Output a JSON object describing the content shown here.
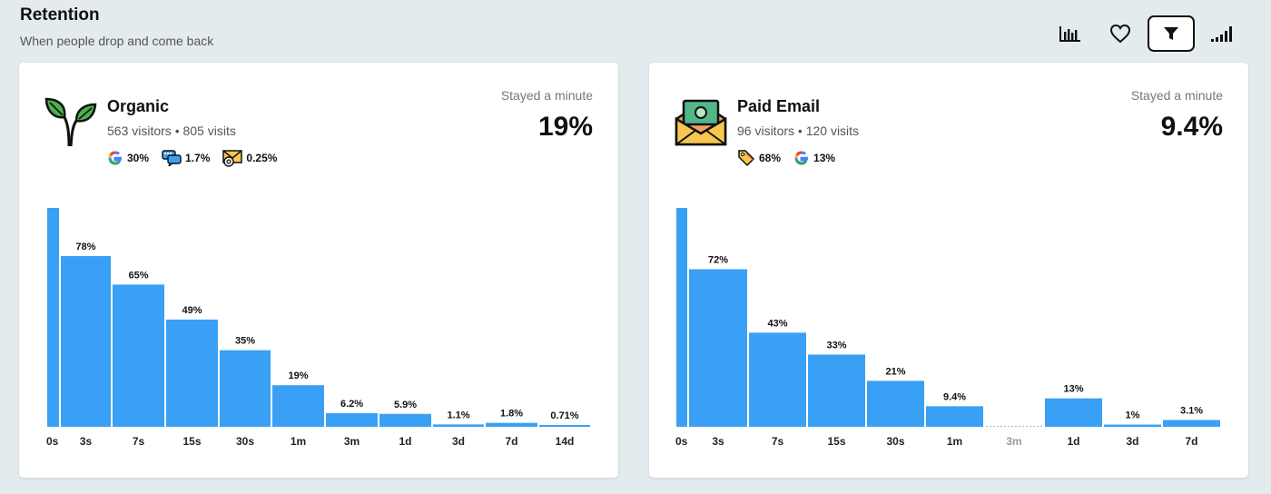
{
  "header": {
    "title": "Retention",
    "subtitle": "When people drop and come back"
  },
  "toolbar": [
    {
      "icon": "bar-chart-icon",
      "active": false
    },
    {
      "icon": "heart-icon",
      "active": false
    },
    {
      "icon": "filter-icon",
      "active": true
    },
    {
      "icon": "signal-bars-icon",
      "active": false
    }
  ],
  "colors": {
    "bar": "#3aa0f5",
    "gap_line": "#bbbbbb",
    "tick": "#222222",
    "tick_muted": "#999999"
  },
  "cards": [
    {
      "name": "Organic",
      "meta": "563 visitors • 805 visits",
      "icon": "sprout-icon",
      "metric_label": "Stayed a minute",
      "metric_value": "19%",
      "sources": [
        {
          "icon": "google-icon",
          "value": "30%"
        },
        {
          "icon": "chat-bubbles-icon",
          "value": "1.7%"
        },
        {
          "icon": "email-icon",
          "value": "0.25%"
        }
      ]
    },
    {
      "name": "Paid Email",
      "meta": "96 visitors • 120 visits",
      "icon": "money-envelope-icon",
      "metric_label": "Stayed a minute",
      "metric_value": "9.4%",
      "sources": [
        {
          "icon": "price-tag-icon",
          "value": "68%"
        },
        {
          "icon": "google-icon",
          "value": "13%"
        }
      ]
    }
  ],
  "chart_data": [
    {
      "type": "bar",
      "title": "Organic",
      "categories": [
        "0s",
        "3s",
        "7s",
        "15s",
        "30s",
        "1m",
        "3m",
        "1d",
        "3d",
        "7d",
        "14d"
      ],
      "values": [
        100,
        78,
        65,
        49,
        35,
        19,
        6.2,
        5.9,
        1.1,
        1.8,
        0.71
      ],
      "labels": [
        "",
        "78%",
        "65%",
        "49%",
        "35%",
        "19%",
        "6.2%",
        "5.9%",
        "1.1%",
        "1.8%",
        "0.71%"
      ],
      "ylim": [
        0,
        100
      ]
    },
    {
      "type": "bar",
      "title": "Paid Email",
      "categories": [
        "0s",
        "3s",
        "7s",
        "15s",
        "30s",
        "1m",
        "3m",
        "1d",
        "3d",
        "7d"
      ],
      "values": [
        100,
        72,
        43,
        33,
        21,
        9.4,
        null,
        13,
        1,
        3.1
      ],
      "labels": [
        "",
        "72%",
        "43%",
        "33%",
        "21%",
        "9.4%",
        "",
        "13%",
        "1%",
        "3.1%"
      ],
      "ylim": [
        0,
        100
      ]
    }
  ]
}
